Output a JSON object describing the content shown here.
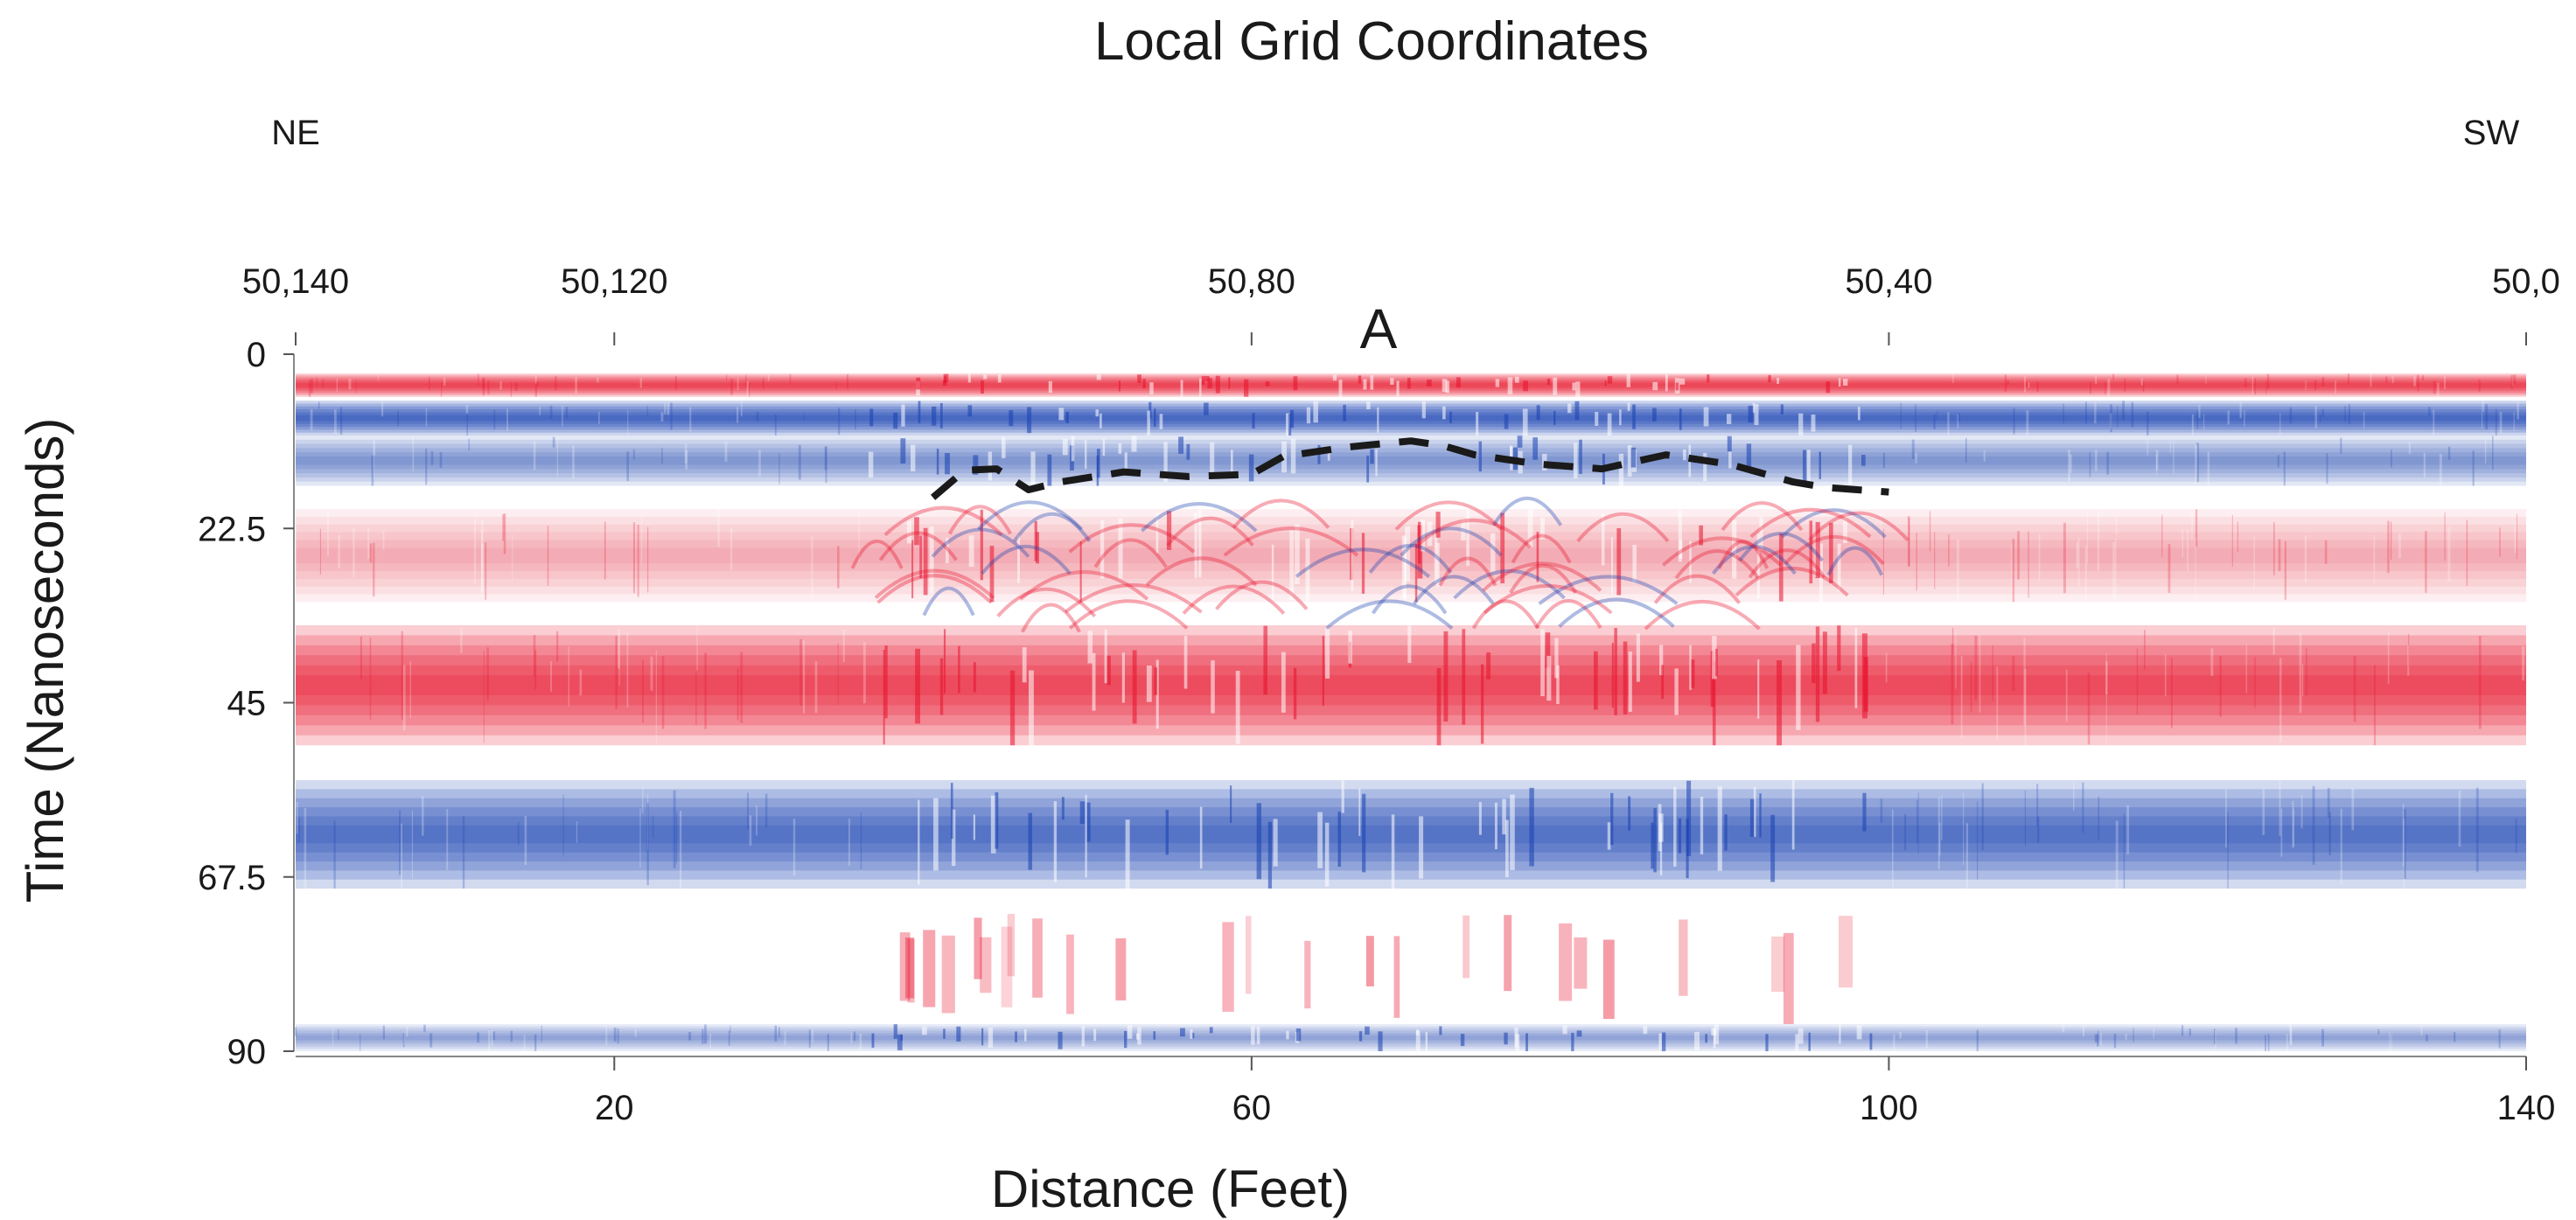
{
  "chart_data": {
    "type": "heatmap",
    "title": "Local Grid Coordinates",
    "xlabel": "Distance (Feet)",
    "ylabel": "Time (Nanoseconds)",
    "xlim": [
      0,
      140
    ],
    "ylim": [
      0,
      90
    ],
    "y_inverted": true,
    "x_ticks": [
      20,
      60,
      100,
      140
    ],
    "y_ticks": [
      0,
      22.5,
      45,
      67.5,
      90
    ],
    "y_tick_labels": [
      "0",
      "22.5",
      "45",
      "67.5",
      "90"
    ],
    "top_axis": {
      "ticks": [
        {
          "x": 0,
          "label": "50,140"
        },
        {
          "x": 20,
          "label": "50,120"
        },
        {
          "x": 60,
          "label": "50,80"
        },
        {
          "x": 100,
          "label": "50,40"
        },
        {
          "x": 140,
          "label": "50,0"
        }
      ],
      "direction_left": "NE",
      "direction_right": "SW"
    },
    "annotations": [
      {
        "text": "A",
        "x": 72,
        "y": -3
      }
    ],
    "reflector_trace": {
      "style": "dashed",
      "color": "#1a1a1a",
      "points": [
        [
          40,
          18.5
        ],
        [
          42,
          15
        ],
        [
          44,
          14.8
        ],
        [
          46,
          17.5
        ],
        [
          48,
          16.5
        ],
        [
          52,
          15.2
        ],
        [
          56,
          15.8
        ],
        [
          60,
          15.5
        ],
        [
          62,
          13.2
        ],
        [
          66,
          12
        ],
        [
          70,
          11.2
        ],
        [
          72,
          11.8
        ],
        [
          74,
          13
        ],
        [
          78,
          14.2
        ],
        [
          82,
          14.8
        ],
        [
          86,
          13
        ],
        [
          90,
          14.2
        ],
        [
          94,
          16.5
        ],
        [
          96,
          17.2
        ],
        [
          100,
          17.8
        ]
      ]
    },
    "bands": [
      {
        "t0": 2.5,
        "t1": 5.5,
        "polarity": "positive",
        "strength": 1.0
      },
      {
        "t0": 6.0,
        "t1": 10.5,
        "polarity": "negative",
        "strength": 1.0
      },
      {
        "t0": 10.5,
        "t1": 17.0,
        "polarity": "negative",
        "strength": 0.55
      },
      {
        "t0": 20.0,
        "t1": 32.0,
        "polarity": "positive",
        "strength": 0.3
      },
      {
        "t0": 35.0,
        "t1": 50.5,
        "polarity": "positive",
        "strength": 0.95
      },
      {
        "t0": 55.0,
        "t1": 69.0,
        "polarity": "negative",
        "strength": 0.9
      },
      {
        "t0": 86.5,
        "t1": 90.0,
        "polarity": "negative",
        "strength": 0.45
      }
    ],
    "disturbed_zone": {
      "x0": 36,
      "x1": 99
    },
    "colors": {
      "positive": "#e8112b",
      "negative": "#1740b0",
      "background": "#ffffff",
      "trace": "#1a1a1a"
    }
  }
}
